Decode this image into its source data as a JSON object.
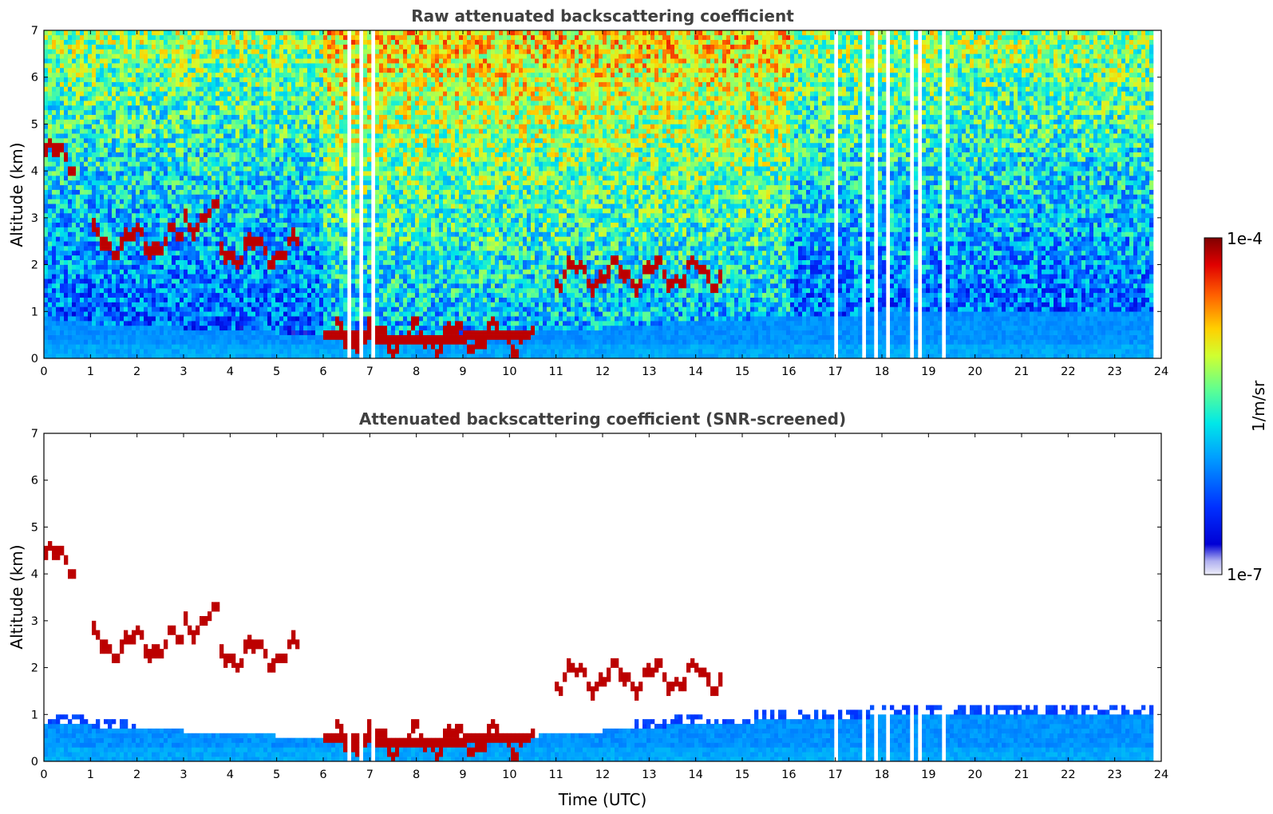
{
  "chart_data": [
    {
      "type": "heatmap",
      "title": "Raw attenuated backscattering coefficient",
      "xlabel": "",
      "ylabel": "Altitude (km)",
      "xlim": [
        0,
        24
      ],
      "ylim": [
        0,
        7
      ],
      "x_ticks": [
        "0",
        "1",
        "2",
        "3",
        "4",
        "5",
        "6",
        "7",
        "8",
        "9",
        "10",
        "11",
        "12",
        "13",
        "14",
        "15",
        "16",
        "17",
        "18",
        "19",
        "20",
        "21",
        "22",
        "23",
        "24"
      ],
      "y_ticks": [
        "0",
        "1",
        "2",
        "3",
        "4",
        "5",
        "6",
        "7"
      ],
      "data_end_time_utc": 23.8,
      "missing_data_gaps_utc": [
        [
          6.5,
          6.62
        ],
        [
          6.75,
          6.88
        ],
        [
          7.0,
          7.13
        ],
        [
          17.0,
          17.06
        ],
        [
          17.6,
          17.7
        ],
        [
          17.85,
          17.95
        ],
        [
          18.05,
          18.15
        ],
        [
          18.6,
          18.7
        ],
        [
          18.8,
          18.85
        ],
        [
          19.25,
          19.35
        ]
      ],
      "features": {
        "boundary_layer_top_km": [
          {
            "x": 0,
            "y": 0.8
          },
          {
            "x": 6,
            "y": 0.5
          },
          {
            "x": 8,
            "y": 0.4
          },
          {
            "x": 10,
            "y": 0.5
          },
          {
            "x": 14,
            "y": 0.8
          },
          {
            "x": 19,
            "y": 1.0
          },
          {
            "x": 23.8,
            "y": 1.0
          }
        ],
        "cloud_layers_km": [
          {
            "x_start": 0,
            "x_end": 0.7,
            "altitude": 4.3
          },
          {
            "x_start": 1.0,
            "x_end": 3.0,
            "altitude": 2.5
          },
          {
            "x_start": 3.0,
            "x_end": 3.8,
            "altitude": 3.0
          },
          {
            "x_start": 3.8,
            "x_end": 5.5,
            "altitude": 2.3
          },
          {
            "x_start": 6.3,
            "x_end": 10.5,
            "altitude": 0.45
          },
          {
            "x_start": 11.0,
            "x_end": 14.6,
            "altitude": 1.8
          }
        ]
      }
    },
    {
      "type": "heatmap",
      "title": "Attenuated backscattering coefficient (SNR-screened)",
      "xlabel": "Time (UTC)",
      "ylabel": "Altitude (km)",
      "xlim": [
        0,
        24
      ],
      "ylim": [
        0,
        7
      ],
      "x_ticks": [
        "0",
        "1",
        "2",
        "3",
        "4",
        "5",
        "6",
        "7",
        "8",
        "9",
        "10",
        "11",
        "12",
        "13",
        "14",
        "15",
        "16",
        "17",
        "18",
        "19",
        "20",
        "21",
        "22",
        "23",
        "24"
      ],
      "y_ticks": [
        "0",
        "1",
        "2",
        "3",
        "4",
        "5",
        "6",
        "7"
      ]
    }
  ],
  "colorbar": {
    "label": "1/m/sr",
    "max_label": "1e-4",
    "min_label": "1e-7",
    "scale": "log",
    "colormap": "jet",
    "colors": [
      "#ededf8",
      "#0000d5",
      "#0060ff",
      "#00c8ff",
      "#40ffb7",
      "#c4ff3a",
      "#ffd400",
      "#ff6a00",
      "#d00000",
      "#800000"
    ]
  }
}
